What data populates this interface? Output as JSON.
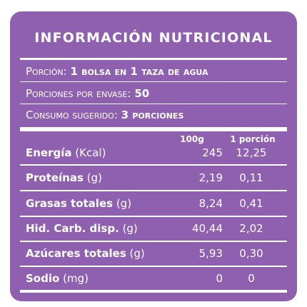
{
  "title": "INFORMACIÓN NUTRICIONAL",
  "serving": {
    "portion_label": "Porción:",
    "portion_value": "1 bolsa en 1 taza de agua",
    "servings_label": "Porciones por envase:",
    "servings_value": "50",
    "suggested_label": "Consumo sugerido:",
    "suggested_value": "3 porciones"
  },
  "columns": [
    "100g",
    "1 porción"
  ],
  "rows": [
    {
      "name": "Energía",
      "unit": "(Kcal)",
      "per100": "245",
      "portion": "12,25"
    },
    {
      "name": "Proteínas",
      "unit": "(g)",
      "per100": "2,19",
      "portion": "0,11"
    },
    {
      "name": "Grasas totales",
      "unit": "(g)",
      "per100": "8,24",
      "portion": "0,41"
    },
    {
      "name": "Hid. Carb. disp.",
      "unit": "(g)",
      "per100": "40,44",
      "portion": "2,02"
    },
    {
      "name": "Azúcares totales",
      "unit": "(g)",
      "per100": "5,93",
      "portion": "0,30"
    },
    {
      "name": "Sodio",
      "unit": "(mg)",
      "per100": "0",
      "portion": "0"
    }
  ],
  "colors": {
    "panel": "#8f5fb0",
    "text": "#ffffff"
  }
}
